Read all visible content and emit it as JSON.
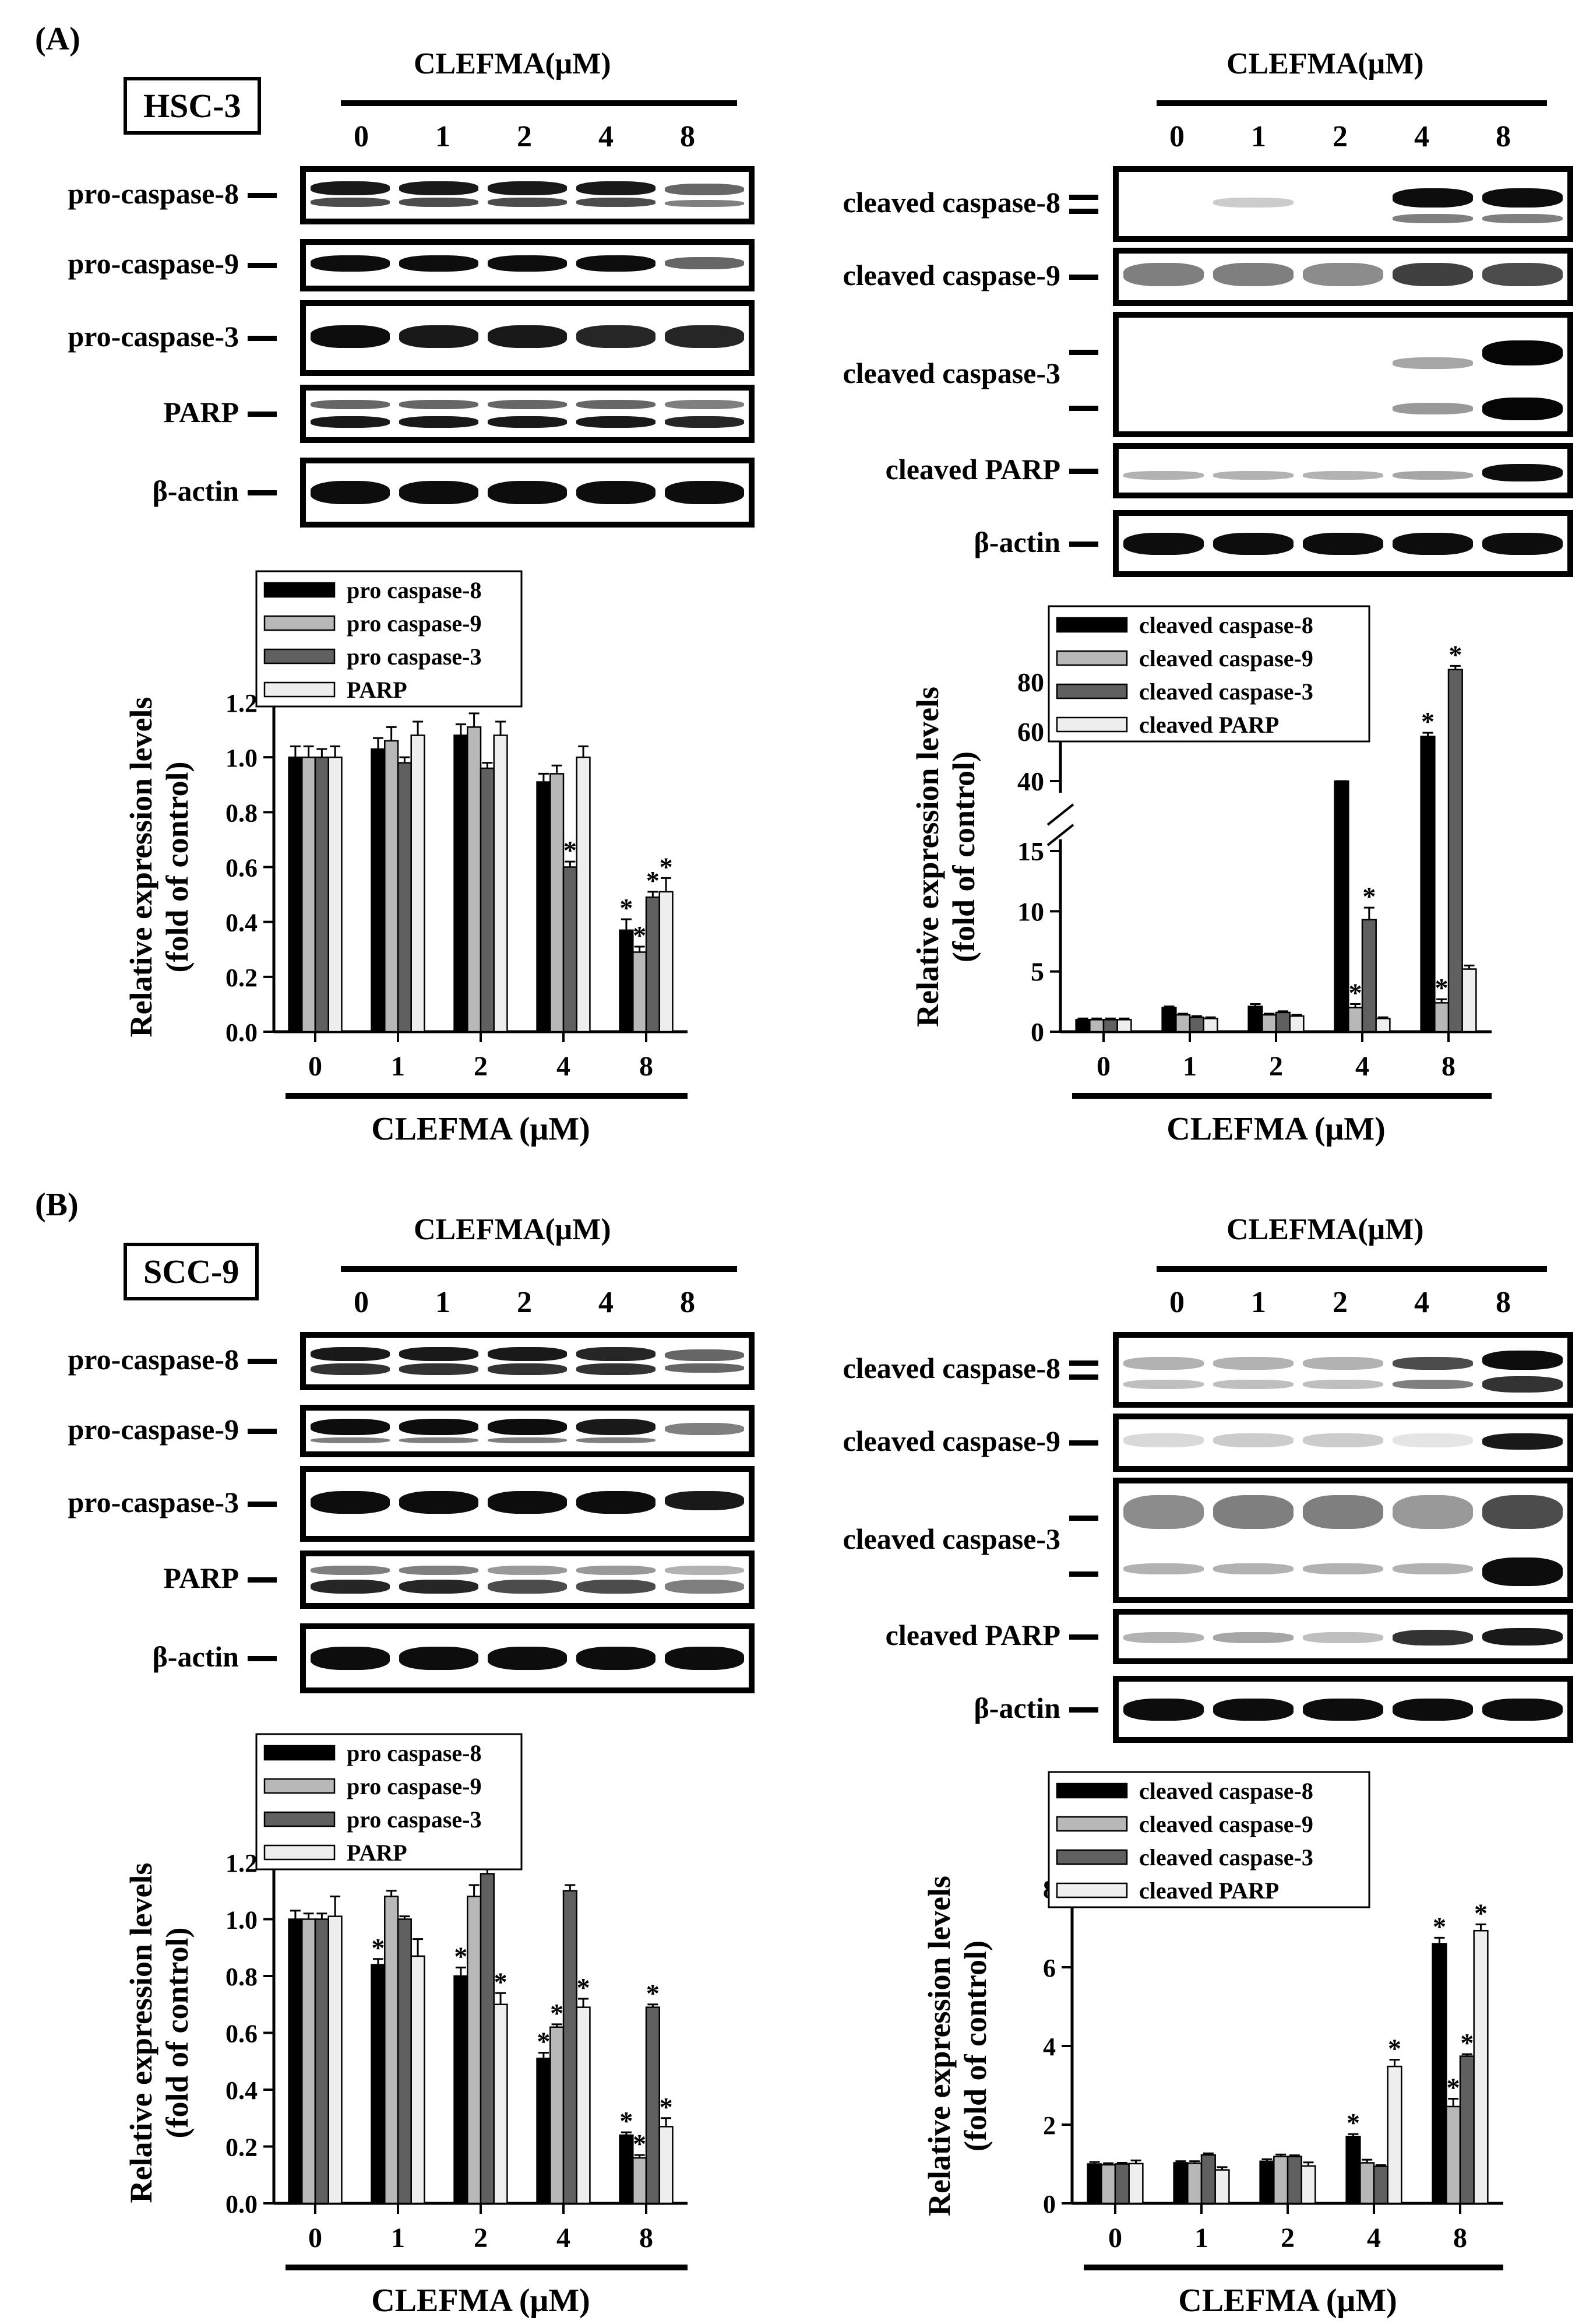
{
  "panels": [
    {
      "label": "(A)",
      "cell_line": "HSC-3",
      "blot_header": "CLEFMA(μM)",
      "lanes": [
        "0",
        "1",
        "2",
        "4",
        "8"
      ],
      "left_blots": [
        "pro-caspase-8",
        "pro-caspase-9",
        "pro-caspase-3",
        "PARP",
        "β-actin"
      ],
      "right_blots": [
        "cleaved caspase-8",
        "cleaved caspase-9",
        "cleaved caspase-3",
        "cleaved PARP",
        "β-actin"
      ]
    },
    {
      "label": "(B)",
      "cell_line": "SCC-9",
      "blot_header": "CLEFMA(μM)",
      "lanes": [
        "0",
        "1",
        "2",
        "4",
        "8"
      ],
      "left_blots": [
        "pro-caspase-8",
        "pro-caspase-9",
        "pro-caspase-3",
        "PARP",
        "β-actin"
      ],
      "right_blots": [
        "cleaved caspase-8",
        "cleaved caspase-9",
        "cleaved caspase-3",
        "cleaved PARP",
        "β-actin"
      ]
    }
  ],
  "colors": {
    "black": "#000000",
    "light_gray": "#b8b8b8",
    "dark_gray": "#606060",
    "very_light": "#eeeeee"
  },
  "chart_data": [
    {
      "type": "bar",
      "panel": "A",
      "categories": [
        "0",
        "1",
        "2",
        "4",
        "8"
      ],
      "xlabel": "CLEFMA (μM)",
      "ylabel_lines": [
        "Relative expression levels",
        "(fold of control)"
      ],
      "ylim": [
        0,
        1.2
      ],
      "yticks": [
        "0.0",
        "0.2",
        "0.4",
        "0.6",
        "0.8",
        "1.0",
        "1.2"
      ],
      "legend_position": "top-left",
      "series": [
        {
          "name": "pro caspase-8",
          "values": [
            1.0,
            1.03,
            1.08,
            0.91,
            0.37
          ],
          "errors": [
            0.04,
            0.04,
            0.04,
            0.03,
            0.04
          ],
          "sig": [
            false,
            false,
            false,
            false,
            true
          ]
        },
        {
          "name": "pro caspase-9",
          "values": [
            1.0,
            1.06,
            1.11,
            0.94,
            0.29
          ],
          "errors": [
            0.04,
            0.05,
            0.05,
            0.03,
            0.02
          ],
          "sig": [
            false,
            false,
            false,
            false,
            true
          ]
        },
        {
          "name": "pro caspase-3",
          "values": [
            1.0,
            0.98,
            0.96,
            0.6,
            0.49
          ],
          "errors": [
            0.03,
            0.02,
            0.02,
            0.02,
            0.02
          ],
          "sig": [
            false,
            false,
            false,
            true,
            true
          ]
        },
        {
          "name": "PARP",
          "values": [
            1.0,
            1.08,
            1.08,
            1.0,
            0.51
          ],
          "errors": [
            0.04,
            0.05,
            0.05,
            0.04,
            0.05
          ],
          "sig": [
            false,
            false,
            false,
            false,
            true
          ]
        }
      ]
    },
    {
      "type": "bar",
      "panel": "A",
      "categories": [
        "0",
        "1",
        "2",
        "4",
        "8"
      ],
      "xlabel": "CLEFMA (μM)",
      "ylabel_lines": [
        "Relative expression levels",
        "(fold of control)"
      ],
      "broken_axis": true,
      "lower_range": [
        0,
        15
      ],
      "lower_ticks": [
        "0",
        "5",
        "10",
        "15"
      ],
      "upper_range": [
        40,
        80
      ],
      "upper_ticks": [
        "40",
        "60",
        "80"
      ],
      "legend_position": "top-left",
      "series": [
        {
          "name": "cleaved caspase-8",
          "values": [
            1.0,
            2.0,
            2.1,
            34,
            58
          ],
          "errors": [
            0.1,
            0.1,
            0.2,
            1.5,
            1.5
          ],
          "sig": [
            false,
            false,
            false,
            false,
            true
          ]
        },
        {
          "name": "cleaved caspase-9",
          "values": [
            1.0,
            1.4,
            1.4,
            2.0,
            2.4
          ],
          "errors": [
            0.1,
            0.1,
            0.1,
            0.3,
            0.3
          ],
          "sig": [
            false,
            false,
            false,
            true,
            true
          ]
        },
        {
          "name": "cleaved caspase-3",
          "values": [
            1.0,
            1.2,
            1.6,
            9.3,
            85
          ],
          "errors": [
            0.1,
            0.1,
            0.1,
            1.0,
            1.5
          ],
          "sig": [
            false,
            false,
            false,
            true,
            true
          ]
        },
        {
          "name": "cleaved PARP",
          "values": [
            1.0,
            1.1,
            1.3,
            1.1,
            5.2
          ],
          "errors": [
            0.1,
            0.1,
            0.1,
            0.1,
            0.3
          ],
          "sig": [
            false,
            false,
            false,
            false,
            false
          ]
        }
      ]
    },
    {
      "type": "bar",
      "panel": "B",
      "categories": [
        "0",
        "1",
        "2",
        "4",
        "8"
      ],
      "xlabel": "CLEFMA (μM)",
      "ylabel_lines": [
        "Relative expression levels",
        "(fold of control)"
      ],
      "ylim": [
        0,
        1.2
      ],
      "yticks": [
        "0.0",
        "0.2",
        "0.4",
        "0.6",
        "0.8",
        "1.0",
        "1.2"
      ],
      "legend_position": "top-left",
      "series": [
        {
          "name": "pro caspase-8",
          "values": [
            1.0,
            0.84,
            0.8,
            0.51,
            0.24
          ],
          "errors": [
            0.03,
            0.02,
            0.03,
            0.02,
            0.01
          ],
          "sig": [
            false,
            true,
            true,
            true,
            true
          ]
        },
        {
          "name": "pro caspase-9",
          "values": [
            1.0,
            1.08,
            1.08,
            0.62,
            0.16
          ],
          "errors": [
            0.02,
            0.02,
            0.04,
            0.01,
            0.01
          ],
          "sig": [
            false,
            false,
            false,
            true,
            true
          ]
        },
        {
          "name": "pro caspase-3",
          "values": [
            1.0,
            1.0,
            1.16,
            1.1,
            0.69
          ],
          "errors": [
            0.02,
            0.01,
            0.02,
            0.02,
            0.01
          ],
          "sig": [
            false,
            false,
            false,
            false,
            true
          ]
        },
        {
          "name": "PARP",
          "values": [
            1.01,
            0.87,
            0.7,
            0.69,
            0.27
          ],
          "errors": [
            0.07,
            0.06,
            0.04,
            0.03,
            0.03
          ],
          "sig": [
            false,
            false,
            true,
            true,
            true
          ]
        }
      ]
    },
    {
      "type": "bar",
      "panel": "B",
      "categories": [
        "0",
        "1",
        "2",
        "4",
        "8"
      ],
      "xlabel": "CLEFMA (μM)",
      "ylabel_lines": [
        "Relative expression levels",
        "(fold of control)"
      ],
      "ylim": [
        0,
        8
      ],
      "yticks": [
        "0",
        "2",
        "4",
        "6",
        "8"
      ],
      "legend_position": "top-left",
      "series": [
        {
          "name": "cleaved caspase-8",
          "values": [
            1.0,
            1.03,
            1.07,
            1.7,
            6.6
          ],
          "errors": [
            0.05,
            0.04,
            0.05,
            0.06,
            0.15
          ],
          "sig": [
            false,
            false,
            false,
            true,
            true
          ]
        },
        {
          "name": "cleaved caspase-9",
          "values": [
            0.98,
            1.02,
            1.19,
            1.03,
            2.46
          ],
          "errors": [
            0.04,
            0.05,
            0.05,
            0.08,
            0.2
          ],
          "sig": [
            false,
            false,
            false,
            false,
            true
          ]
        },
        {
          "name": "cleaved caspase-3",
          "values": [
            1.0,
            1.23,
            1.19,
            0.94,
            3.74
          ],
          "errors": [
            0.03,
            0.04,
            0.03,
            0.03,
            0.05
          ],
          "sig": [
            false,
            false,
            false,
            false,
            true
          ]
        },
        {
          "name": "cleaved PARP",
          "values": [
            1.01,
            0.85,
            0.95,
            3.48,
            6.93
          ],
          "errors": [
            0.08,
            0.07,
            0.09,
            0.17,
            0.16
          ],
          "sig": [
            false,
            false,
            false,
            true,
            true
          ]
        }
      ]
    }
  ]
}
